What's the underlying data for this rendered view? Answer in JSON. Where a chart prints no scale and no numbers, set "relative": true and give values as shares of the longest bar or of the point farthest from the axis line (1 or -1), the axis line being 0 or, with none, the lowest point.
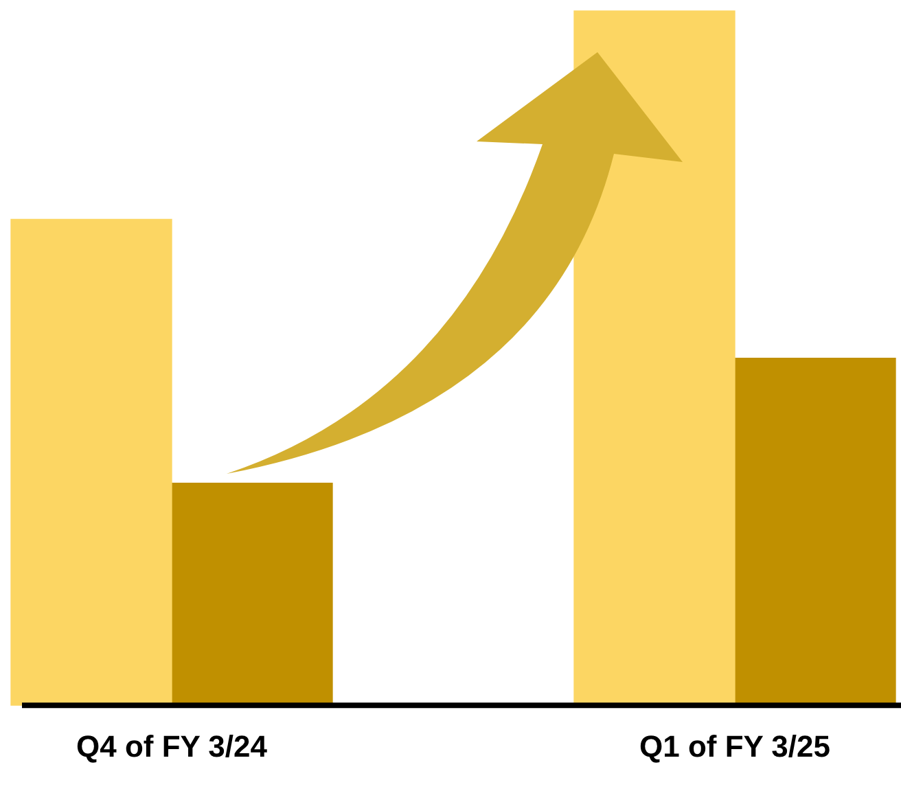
{
  "chart_data": {
    "type": "bar",
    "categories": [
      "Q4 of FY 3/24",
      "Q1 of FY 3/25"
    ],
    "relative": true,
    "grid": false,
    "legend": false,
    "series": [
      {
        "color": "#fcd663",
        "values": [
          0.7,
          1
        ]
      },
      {
        "color": "#c09000",
        "values": [
          0.32,
          0.5
        ]
      }
    ]
  }
}
